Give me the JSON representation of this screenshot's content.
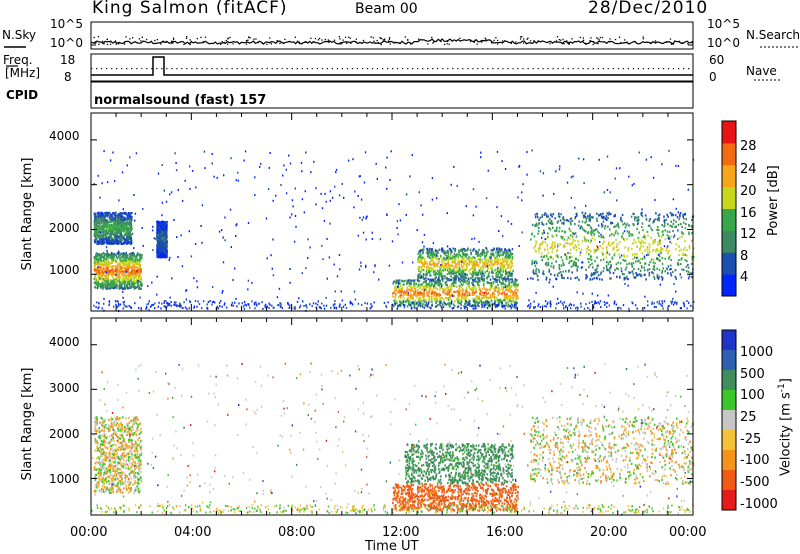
{
  "header": {
    "station": "King Salmon (fitACF)",
    "beam": "Beam 00",
    "date": "28/Dec/2010"
  },
  "top_panels": {
    "nsky_label": "N.Sky",
    "nsearch_label": "N.Search",
    "noise_ticks": [
      "10^5",
      "10^0"
    ],
    "freq_label_1": "Freq.",
    "freq_label_2": "[MHz]",
    "freq_ticks": [
      "18",
      "8"
    ],
    "nave_label": "Nave",
    "nave_ticks": [
      "60",
      "0"
    ],
    "cpid_label": "CPID",
    "cpid_text": "normalsound (fast) 157"
  },
  "x_axis": {
    "label": "Time UT",
    "ticks": [
      "00:00",
      "04:00",
      "08:00",
      "12:00",
      "16:00",
      "20:00",
      "00:00"
    ]
  },
  "colors": {
    "power_scale": [
      "#0026ff",
      "#1d4fb0",
      "#3c8a62",
      "#37a84a",
      "#c7d81c",
      "#f6a618",
      "#f26b10",
      "#e81414"
    ],
    "velocity_scale": [
      "#e61b1b",
      "#f05a14",
      "#f49418",
      "#f3c13a",
      "#c6c6c6",
      "#3bc62a",
      "#3f8e5c",
      "#2f5fb0",
      "#2034c8"
    ]
  },
  "chart_data": [
    {
      "type": "heatmap",
      "title": "",
      "xlabel": "Time UT",
      "ylabel": "Slant Range [km]",
      "xlim": [
        "00:00",
        "24:00"
      ],
      "ylim": [
        180,
        4600
      ],
      "y_ticks": [
        1000,
        2000,
        3000,
        4000
      ],
      "colorbar": {
        "label": "Power [dB]",
        "ticks": [
          4,
          8,
          12,
          16,
          20,
          24,
          28
        ],
        "range": [
          0,
          32
        ]
      },
      "features": [
        {
          "t_start": 0.1,
          "t_end": 2.0,
          "range_km_from": 700,
          "range_km_to": 1500,
          "peak_dB": 26
        },
        {
          "t_start": 0.1,
          "t_end": 1.6,
          "range_km_from": 1700,
          "range_km_to": 2400,
          "peak_dB": 14
        },
        {
          "t_start": 2.6,
          "t_end": 3.0,
          "range_km_from": 1400,
          "range_km_to": 2200,
          "peak_dB": 8
        },
        {
          "t_start": 12.0,
          "t_end": 17.0,
          "range_km_from": 300,
          "range_km_to": 900,
          "peak_dB": 26
        },
        {
          "t_start": 13.0,
          "t_end": 16.8,
          "range_km_from": 900,
          "range_km_to": 1600,
          "peak_dB": 22
        },
        {
          "t_start": 17.5,
          "t_end": 24.0,
          "range_km_from": 900,
          "range_km_to": 2400,
          "peak_dB": 20
        }
      ]
    },
    {
      "type": "heatmap",
      "title": "",
      "xlabel": "Time UT",
      "ylabel": "Slant Range [km]",
      "xlim": [
        "00:00",
        "24:00"
      ],
      "ylim": [
        180,
        4600
      ],
      "y_ticks": [
        1000,
        2000,
        3000,
        4000
      ],
      "colorbar": {
        "label": "Velocity [m s^-1]",
        "ticks": [
          "1000",
          "500",
          "100",
          "25",
          "-25",
          "-100",
          "-500",
          "-1000"
        ]
      },
      "features": [
        {
          "t_start": 0.1,
          "t_end": 2.0,
          "range_km_from": 700,
          "range_km_to": 2400,
          "velocity": 0
        },
        {
          "t_start": 12.5,
          "t_end": 16.8,
          "range_km_from": 900,
          "range_km_to": 1800,
          "velocity": 150
        },
        {
          "t_start": 12.0,
          "t_end": 17.0,
          "range_km_from": 300,
          "range_km_to": 900,
          "velocity": -150
        },
        {
          "t_start": 17.5,
          "t_end": 24.0,
          "range_km_from": 900,
          "range_km_to": 2400,
          "velocity": 0
        }
      ]
    }
  ]
}
